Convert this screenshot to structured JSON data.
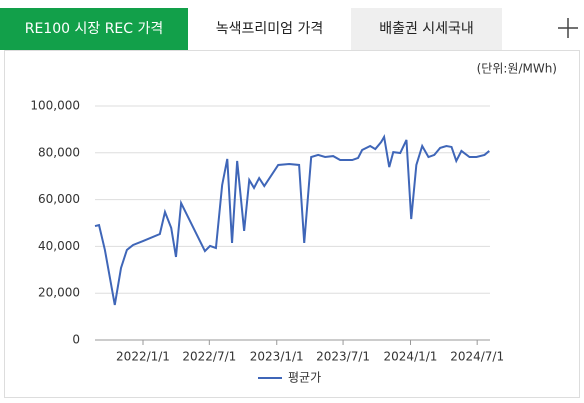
{
  "tabs": [
    "RE100 시장 REC 가격",
    "녹색프리미엄 가격",
    "배출권 시세국내"
  ],
  "chart_data": {
    "type": "line",
    "unit": "(단위:원/MWh)",
    "x": [
      "2021-08-23",
      "2021-09-03",
      "2021-09-19",
      "2021-10-16",
      "2021-11-02",
      "2021-11-18",
      "2021-12-05",
      "2022-01-01",
      "2022-02-16",
      "2022-03-02",
      "2022-03-19",
      "2022-04-01",
      "2022-04-15",
      "2022-06-19",
      "2022-07-03",
      "2022-07-19",
      "2022-08-05",
      "2022-08-19",
      "2022-09-01",
      "2022-09-15",
      "2022-10-04",
      "2022-10-18",
      "2022-10-31",
      "2022-11-14",
      "2022-11-28",
      "2023-01-05",
      "2023-02-04",
      "2023-03-03",
      "2023-03-17",
      "2023-04-05",
      "2023-04-24",
      "2023-05-13",
      "2023-06-04",
      "2023-06-23",
      "2023-07-26",
      "2023-08-11",
      "2023-08-22",
      "2023-09-13",
      "2023-09-27",
      "2023-10-13",
      "2023-10-21",
      "2023-11-04",
      "2023-11-15",
      "2023-12-04",
      "2023-12-21",
      "2024-01-03",
      "2024-01-17",
      "2024-02-02",
      "2024-02-19",
      "2024-03-06",
      "2024-03-22",
      "2024-04-08",
      "2024-04-22",
      "2024-05-05",
      "2024-05-19",
      "2024-06-10",
      "2024-06-29",
      "2024-07-21",
      "2024-08-03"
    ],
    "series": [
      {
        "name": "평균가",
        "color": "#3f66b8",
        "values": [
          48700,
          49100,
          38500,
          15000,
          30800,
          38500,
          40600,
          42300,
          45300,
          54700,
          47900,
          35500,
          58500,
          38000,
          40200,
          39300,
          66200,
          77400,
          41500,
          76500,
          46600,
          68400,
          65000,
          69200,
          65800,
          74800,
          75200,
          74800,
          41500,
          78200,
          79100,
          78200,
          78600,
          76900,
          76900,
          77800,
          81200,
          82900,
          81600,
          84600,
          86800,
          73900,
          80300,
          79900,
          85500,
          51700,
          74800,
          82900,
          78200,
          79100,
          82100,
          82900,
          82500,
          76500,
          80800,
          78200,
          78200,
          79100,
          80800
        ]
      }
    ],
    "xlim": [
      "2021-08-23",
      "2024-08-05"
    ],
    "xticks": [
      {
        "value": "2022-01-01",
        "label": "2022/1/1"
      },
      {
        "value": "2022-07-01",
        "label": "2022/7/1"
      },
      {
        "value": "2023-01-01",
        "label": "2023/1/1"
      },
      {
        "value": "2023-07-01",
        "label": "2023/7/1"
      },
      {
        "value": "2024-01-01",
        "label": "2024/1/1"
      },
      {
        "value": "2024-07-01",
        "label": "2024/7/1"
      }
    ],
    "ylim": [
      0,
      100000
    ],
    "yticks": [
      0,
      {
        "value": 20000,
        "label": "20,000"
      },
      {
        "value": 40000,
        "label": "40,000"
      },
      {
        "value": 60000,
        "label": "60,000"
      },
      {
        "value": 80000,
        "label": "80,000"
      },
      {
        "value": 100000,
        "label": "100,000"
      }
    ],
    "grid": true
  }
}
